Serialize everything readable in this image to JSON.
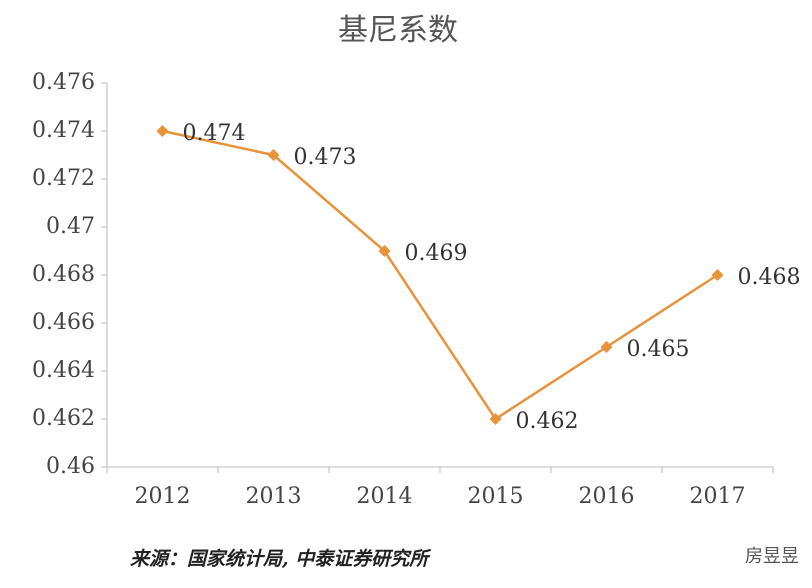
{
  "chart_data": {
    "type": "line",
    "title": "基尼系数",
    "categories": [
      "2012",
      "2013",
      "2014",
      "2015",
      "2016",
      "2017"
    ],
    "values": [
      0.474,
      0.473,
      0.469,
      0.462,
      0.465,
      0.468
    ],
    "color": "#e8923a",
    "ylim": [
      0.46,
      0.476
    ],
    "yticks": [
      0.46,
      0.462,
      0.464,
      0.466,
      0.468,
      0.47,
      0.472,
      0.474,
      0.476
    ],
    "grid": false,
    "source": "来源：国家统计局, 中泰证券研究所",
    "watermark": "房昱昱"
  }
}
